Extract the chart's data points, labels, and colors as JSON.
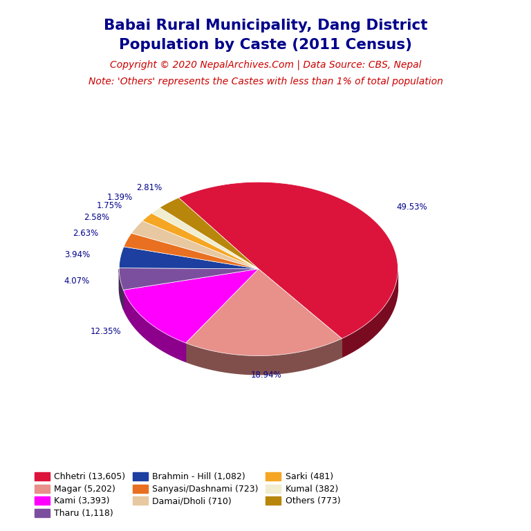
{
  "title_line1": "Babai Rural Municipality, Dang District",
  "title_line2": "Population by Caste (2011 Census)",
  "title_color": "#00008B",
  "copyright_text": "Copyright © 2020 NepalArchives.Com | Data Source: CBS, Nepal",
  "note_text": "Note: 'Others' represents the Castes with less than 1% of total population",
  "annotation_color": "#CC0000",
  "labels": [
    "Chhetri (13,605)",
    "Magar (5,202)",
    "Kami (3,393)",
    "Tharu (1,118)",
    "Brahmin - Hill (1,082)",
    "Sanyasi/Dashnami (723)",
    "Damai/Dholi (710)",
    "Sarki (481)",
    "Kumal (382)",
    "Others (773)"
  ],
  "values": [
    13605,
    5202,
    3393,
    1118,
    1082,
    723,
    710,
    481,
    382,
    773
  ],
  "percentages": [
    "49.53%",
    "18.94%",
    "12.35%",
    "4.07%",
    "3.94%",
    "2.63%",
    "2.58%",
    "1.75%",
    "1.39%",
    "2.81%"
  ],
  "colors": [
    "#DC143C",
    "#E8908A",
    "#FF00FF",
    "#7B4F9E",
    "#1C3FA0",
    "#E87020",
    "#E8C8A0",
    "#F5A623",
    "#F0EDD0",
    "#B8860B"
  ],
  "pct_label_color": "#00008B",
  "background_color": "#FFFFFF"
}
